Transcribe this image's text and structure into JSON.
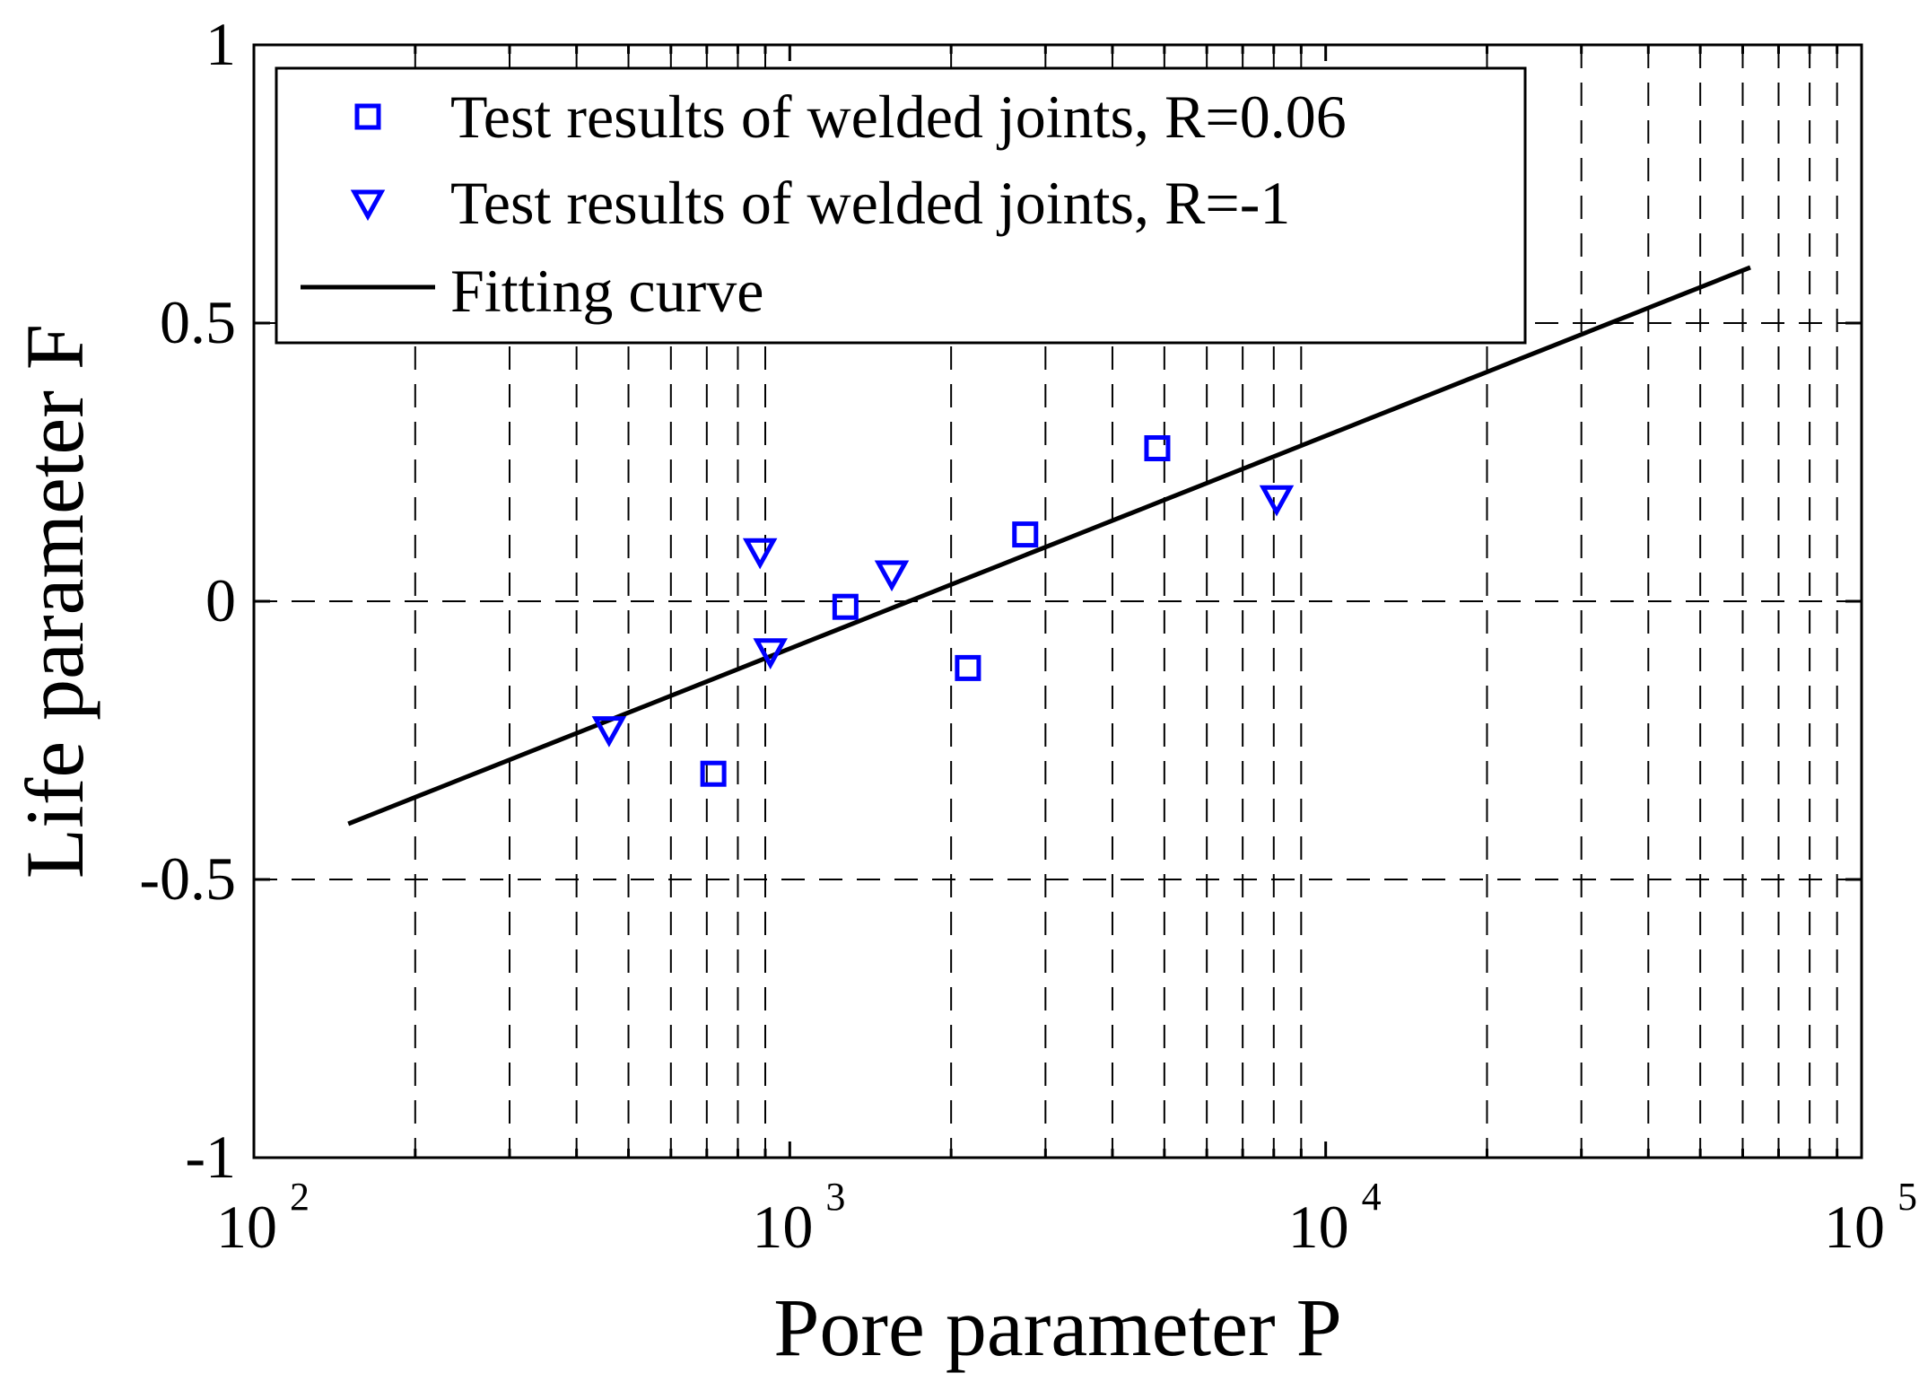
{
  "chart_data": {
    "type": "scatter",
    "title": "",
    "xlabel": "Pore parameter P",
    "ylabel": "Life parameter F",
    "xscale": "log",
    "xlim": [
      100,
      100000
    ],
    "ylim": [
      -1,
      1
    ],
    "grid": true,
    "legend_position": "top-left",
    "x_ticks": [
      {
        "value": 100,
        "base": "10",
        "exp": "2"
      },
      {
        "value": 1000,
        "base": "10",
        "exp": "3"
      },
      {
        "value": 10000,
        "base": "10",
        "exp": "4"
      },
      {
        "value": 100000,
        "base": "10",
        "exp": "5"
      }
    ],
    "y_ticks": [
      {
        "value": 1,
        "label": "1"
      },
      {
        "value": 0.5,
        "label": "0.5"
      },
      {
        "value": 0,
        "label": "0"
      },
      {
        "value": -0.5,
        "label": "-0.5"
      },
      {
        "value": -1,
        "label": "-1"
      }
    ],
    "series": [
      {
        "name": "Test results of welded joints, R=0.06",
        "marker": "square",
        "color": "#0000ff",
        "points": [
          {
            "x": 720,
            "y": -0.31
          },
          {
            "x": 1270,
            "y": -0.01
          },
          {
            "x": 2150,
            "y": -0.12
          },
          {
            "x": 2750,
            "y": 0.12
          },
          {
            "x": 4850,
            "y": 0.275
          }
        ]
      },
      {
        "name": "Test results of welded joints, R=-1",
        "marker": "triangle-down",
        "color": "#0000ff",
        "points": [
          {
            "x": 460,
            "y": -0.23
          },
          {
            "x": 880,
            "y": 0.09
          },
          {
            "x": 920,
            "y": -0.09
          },
          {
            "x": 1550,
            "y": 0.05
          },
          {
            "x": 8100,
            "y": 0.185
          }
        ]
      },
      {
        "name": "Fitting curve",
        "type": "line",
        "color": "#000000",
        "points": [
          {
            "x": 150,
            "y": -0.4
          },
          {
            "x": 62000,
            "y": 0.6
          }
        ]
      }
    ]
  }
}
